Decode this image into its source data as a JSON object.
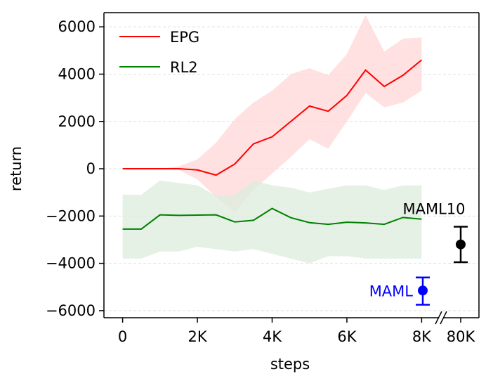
{
  "chart_data": {
    "type": "line",
    "xlabel": "steps",
    "ylabel": "return",
    "x_ticks": [
      {
        "value": 0,
        "label": "0"
      },
      {
        "value": 2000,
        "label": "2K"
      },
      {
        "value": 4000,
        "label": "4K"
      },
      {
        "value": 6000,
        "label": "6K"
      },
      {
        "value": 8000,
        "label": "8K"
      }
    ],
    "x_break_tick": {
      "label": "80K",
      "value": 80000
    },
    "y_ticks": [
      {
        "value": 6000,
        "label": "6000"
      },
      {
        "value": 4000,
        "label": "4000"
      },
      {
        "value": 2000,
        "label": "2000"
      },
      {
        "value": 0,
        "label": "0"
      },
      {
        "value": -2000,
        "label": "−2000"
      },
      {
        "value": -4000,
        "label": "−4000"
      },
      {
        "value": -6000,
        "label": "−6000"
      }
    ],
    "xlim": [
      -500,
      8500
    ],
    "ylim": [
      -6300,
      6600
    ],
    "grid": "horizontal dashed",
    "legend_position": "top-left",
    "series": [
      {
        "name": "EPG",
        "color": "#ff0000",
        "band_color": "#ffd7d7",
        "x": [
          0,
          500,
          1000,
          1500,
          2000,
          2500,
          3000,
          3500,
          4000,
          4500,
          5000,
          5500,
          6000,
          6500,
          7000,
          7500,
          8000
        ],
        "y": [
          0,
          0,
          0,
          0,
          -50,
          -270,
          200,
          1050,
          1350,
          2000,
          2650,
          2430,
          3100,
          4170,
          3480,
          3950,
          4600
        ],
        "upper": [
          0,
          0,
          0,
          100,
          400,
          1100,
          2100,
          2800,
          3300,
          4000,
          4250,
          3950,
          4850,
          6500,
          4950,
          5500,
          5550
        ],
        "lower": [
          0,
          0,
          0,
          -50,
          -450,
          -1200,
          -1850,
          -900,
          -200,
          500,
          1250,
          850,
          2000,
          3200,
          2600,
          2800,
          3300
        ]
      },
      {
        "name": "RL2",
        "color": "#008000",
        "band_color": "#dcecdc",
        "x": [
          0,
          500,
          1000,
          1500,
          2000,
          2500,
          3000,
          3500,
          4000,
          4500,
          5000,
          5500,
          6000,
          6500,
          7000,
          7500,
          8000
        ],
        "y": [
          -2550,
          -2550,
          -1950,
          -1970,
          -1960,
          -1950,
          -2250,
          -2180,
          -1680,
          -2070,
          -2280,
          -2350,
          -2260,
          -2290,
          -2350,
          -2060,
          -2130
        ],
        "upper": [
          -1100,
          -1100,
          -500,
          -600,
          -700,
          -1150,
          -1100,
          -500,
          -700,
          -800,
          -1000,
          -850,
          -700,
          -700,
          -900,
          -700,
          -700
        ],
        "lower": [
          -3800,
          -3800,
          -3500,
          -3500,
          -3300,
          -3400,
          -3500,
          -3400,
          -3600,
          -3800,
          -4000,
          -3700,
          -3700,
          -3800,
          -3800,
          -3800,
          -3800
        ]
      }
    ],
    "points": [
      {
        "name": "MAML10",
        "label": "MAML10",
        "x_label": "80K",
        "y": -3200,
        "err_low": -3950,
        "err_high": -2450,
        "color": "#000000"
      },
      {
        "name": "MAML",
        "label": "MAML",
        "x_label": "8K",
        "y": -5150,
        "err_low": -5750,
        "err_high": -4600,
        "color": "#0000ff"
      }
    ]
  }
}
